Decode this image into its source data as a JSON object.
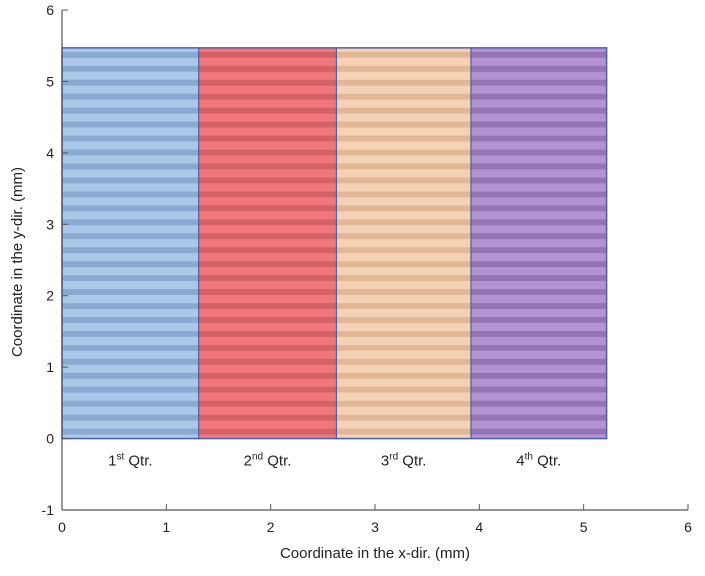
{
  "chart_data": {
    "type": "area",
    "title": "",
    "xlabel": "Coordinate in the x-dir. (mm)",
    "ylabel": "Coordinate in the y-dir. (mm)",
    "xlim": [
      0,
      6
    ],
    "ylim": [
      -1,
      6
    ],
    "xticks": [
      "0",
      "1",
      "2",
      "3",
      "4",
      "5",
      "6"
    ],
    "yticks": [
      "-1",
      "0",
      "1",
      "2",
      "3",
      "4",
      "5",
      "6"
    ],
    "grid": false,
    "scan_lines": 28,
    "regions": [
      {
        "main": "1",
        "sup": "st",
        "rest": " Qtr.",
        "x0": 0.0,
        "x1": 1.31,
        "y0": 0.0,
        "y1": 5.47,
        "color": "#a9c8ea",
        "stripe": "#7f9fc6"
      },
      {
        "main": "2",
        "sup": "nd",
        "rest": " Qtr.",
        "x0": 1.31,
        "x1": 2.63,
        "y0": 0.0,
        "y1": 5.47,
        "color": "#f0787c",
        "stripe": "#c95a5e"
      },
      {
        "main": "3",
        "sup": "rd",
        "rest": " Qtr.",
        "x0": 2.63,
        "x1": 3.92,
        "y0": 0.0,
        "y1": 5.47,
        "color": "#f6d2b4",
        "stripe": "#d8ae8d"
      },
      {
        "main": "4",
        "sup": "th",
        "rest": " Qtr.",
        "x0": 3.92,
        "x1": 5.22,
        "y0": 0.0,
        "y1": 5.47,
        "color": "#b493d2",
        "stripe": "#8b6aaa"
      }
    ],
    "colors": {
      "outline": "#4a5fa8",
      "axis": "#555555"
    }
  }
}
